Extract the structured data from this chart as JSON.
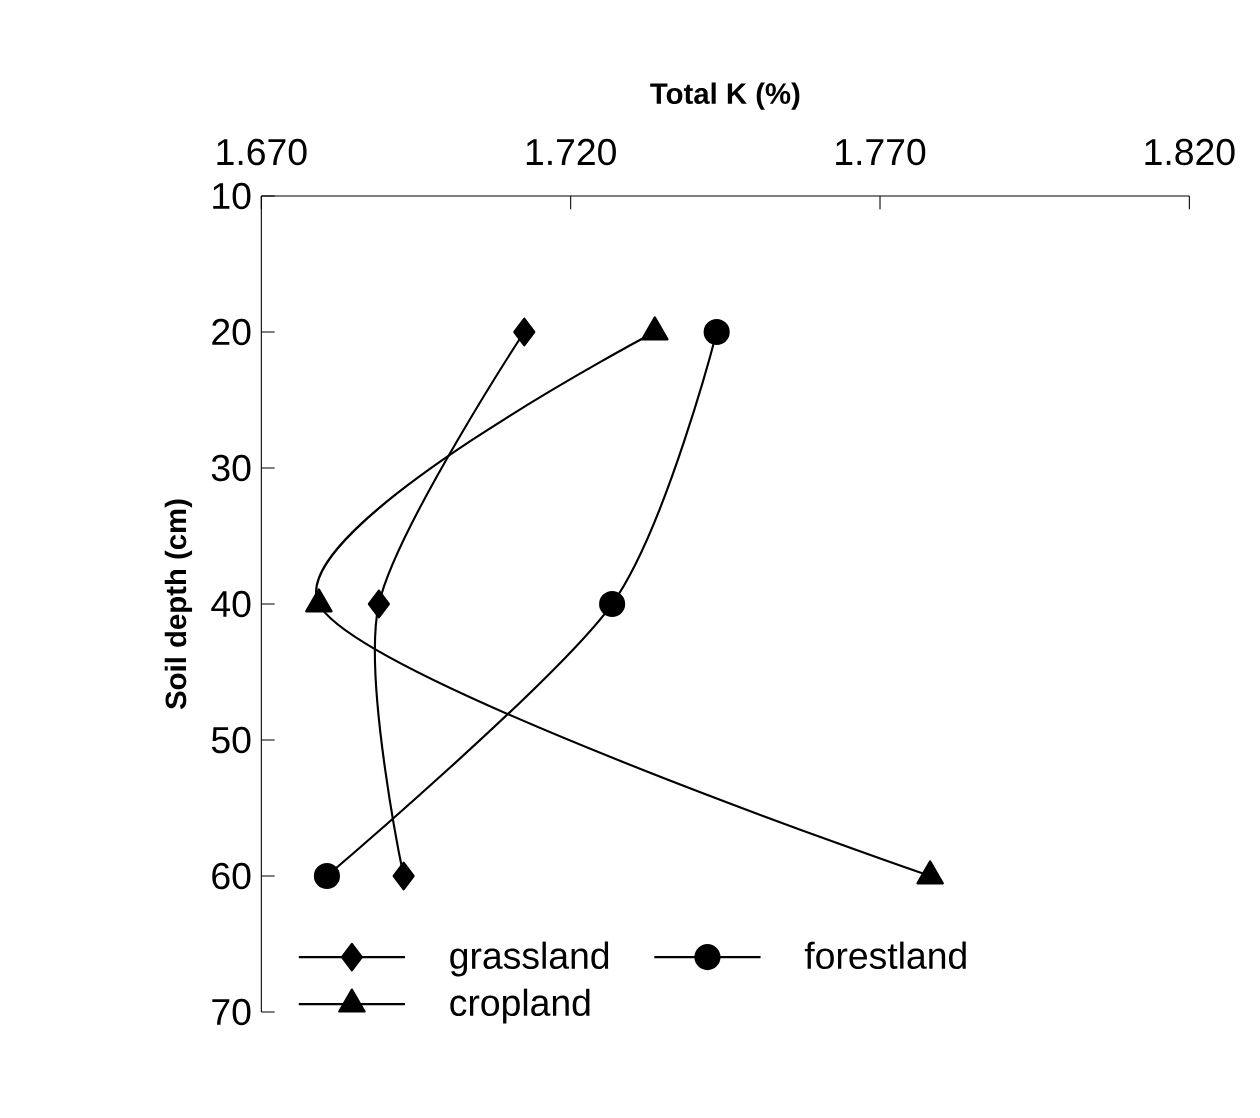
{
  "chart_data": {
    "type": "line",
    "xlabel": "Total K (%)",
    "ylabel": "Soil depth (cm)",
    "xlim": [
      1.67,
      1.82
    ],
    "xticks": [
      {
        "value": 1.67,
        "label": "1.670"
      },
      {
        "value": 1.72,
        "label": "1.720"
      },
      {
        "value": 1.77,
        "label": "1.770"
      },
      {
        "value": 1.82,
        "label": "1.820"
      }
    ],
    "ylim": [
      70,
      10
    ],
    "yticks": [
      10,
      20,
      30,
      40,
      50,
      60,
      70
    ],
    "grid": false,
    "legend": "bottom left",
    "series": [
      {
        "name": "grassland",
        "color": "#000000",
        "marker": "diamond",
        "x": [
          1.7125,
          1.689,
          1.693
        ],
        "values": [
          20,
          40,
          60
        ]
      },
      {
        "name": "forestland",
        "color": "#000000",
        "marker": "circle",
        "x": [
          1.7436,
          1.7267,
          1.6806
        ],
        "values": [
          20,
          40,
          60
        ]
      },
      {
        "name": "cropland",
        "color": "#000000",
        "marker": "triangle",
        "x": [
          1.7336,
          1.6793,
          1.7781
        ],
        "values": [
          20,
          40,
          60
        ]
      }
    ]
  }
}
